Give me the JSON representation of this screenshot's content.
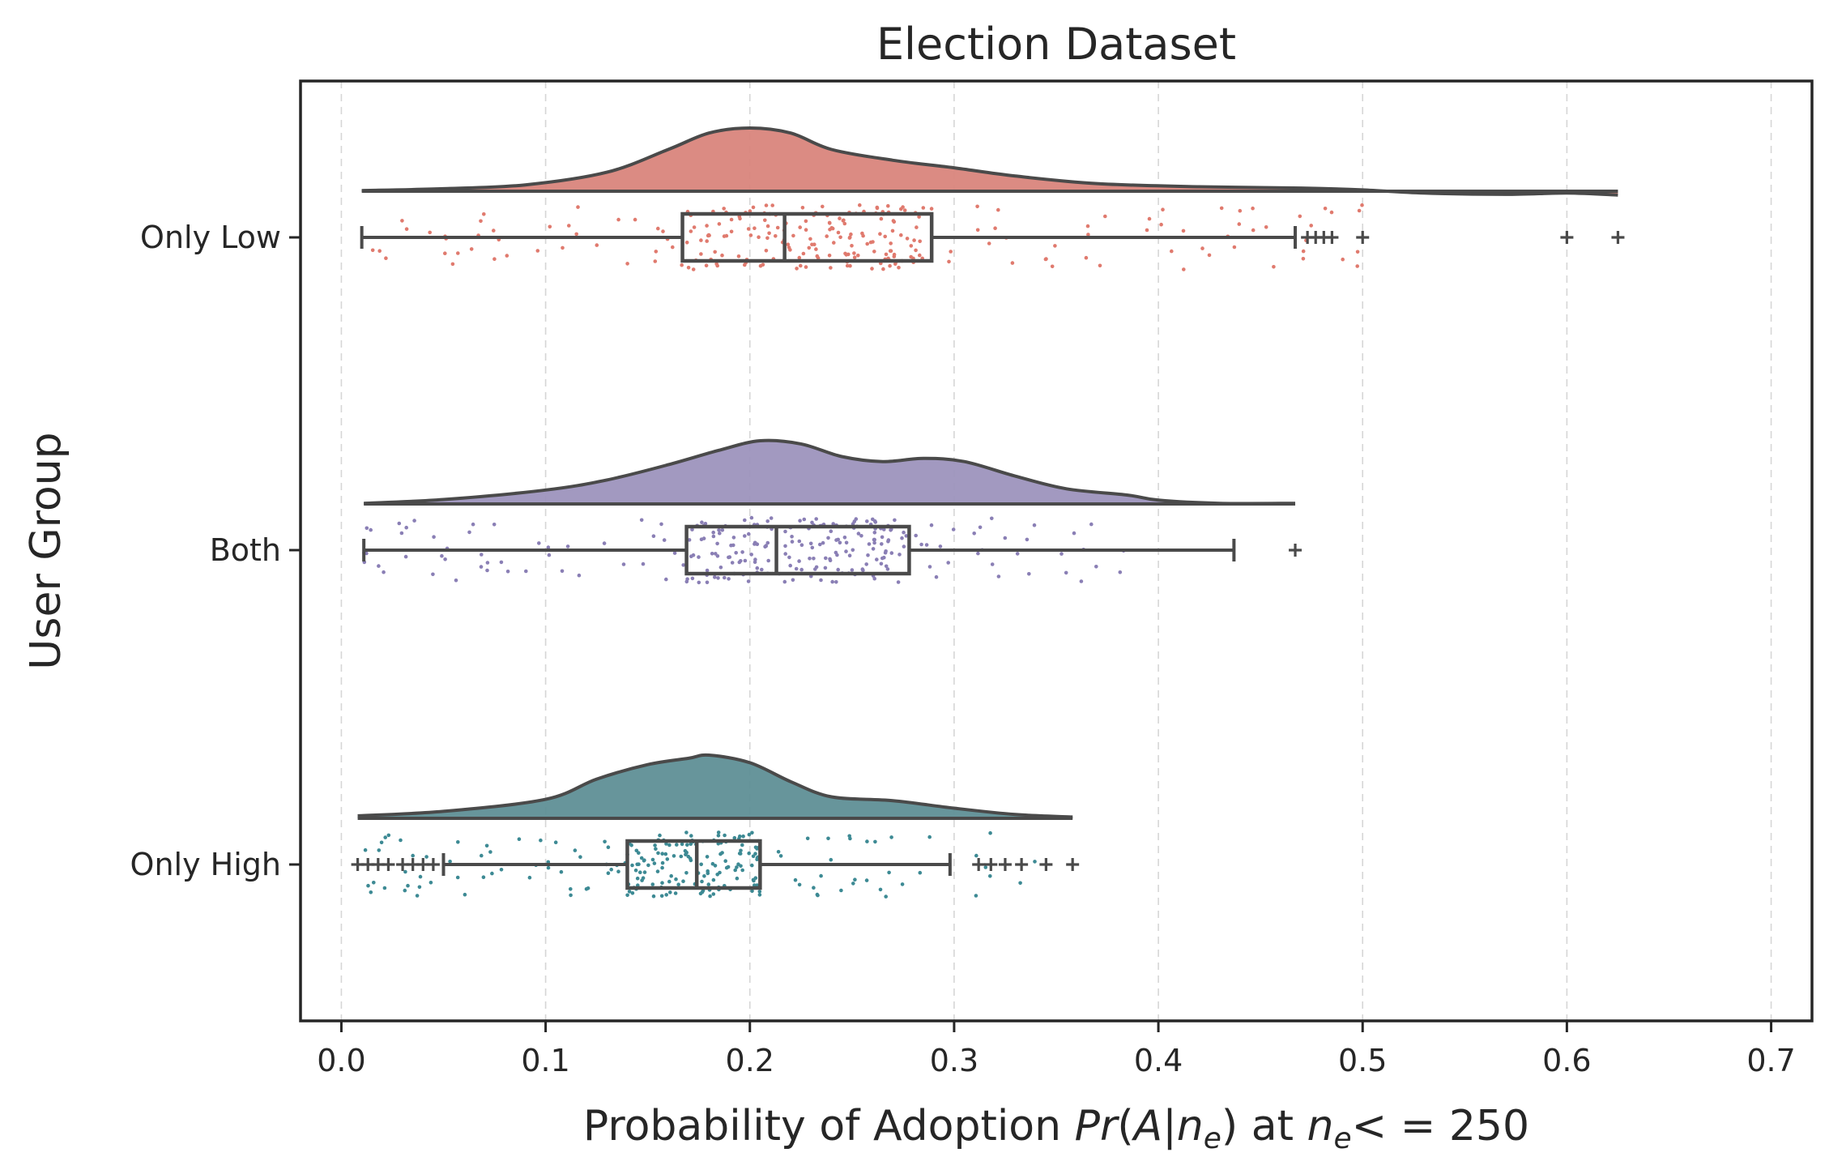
{
  "chart_data": {
    "type": "raincloud",
    "title": "Election Dataset",
    "xlabel": {
      "prefix": "Probability of Adoption ",
      "func": "Pr",
      "open": "(",
      "var": "A",
      "bar": "|",
      "n": "n",
      "sub": "e",
      "close": ")",
      "mid": " at ",
      "n2": "n",
      "sub2": "e",
      "rel": "< = 250"
    },
    "ylabel": "User Group",
    "xlim": [
      -0.02,
      0.72
    ],
    "xticks": [
      0.0,
      0.1,
      0.2,
      0.3,
      0.4,
      0.5,
      0.6,
      0.7
    ],
    "xtick_labels": [
      "0.0",
      "0.1",
      "0.2",
      "0.3",
      "0.4",
      "0.5",
      "0.6",
      "0.7"
    ],
    "grid": "vertical dashed",
    "categories": [
      "Only Low",
      "Both",
      "Only High"
    ],
    "series": [
      {
        "name": "Only Low",
        "color": "#d9857c",
        "point_color": "#e07a6e",
        "box": {
          "whisker_low": 0.01,
          "q1": 0.167,
          "median": 0.217,
          "q3": 0.289,
          "whisker_high": 0.467
        },
        "outliers": [
          0.473,
          0.477,
          0.481,
          0.485,
          0.5,
          0.6,
          0.625
        ],
        "density": [
          [
            0.01,
            0.01
          ],
          [
            0.05,
            0.04
          ],
          [
            0.09,
            0.1
          ],
          [
            0.13,
            0.3
          ],
          [
            0.16,
            0.66
          ],
          [
            0.18,
            0.92
          ],
          [
            0.2,
            1.0
          ],
          [
            0.22,
            0.92
          ],
          [
            0.24,
            0.66
          ],
          [
            0.27,
            0.49
          ],
          [
            0.3,
            0.37
          ],
          [
            0.33,
            0.24
          ],
          [
            0.37,
            0.12
          ],
          [
            0.42,
            0.07
          ],
          [
            0.47,
            0.05
          ],
          [
            0.5,
            0.02
          ],
          [
            0.53,
            -0.03
          ],
          [
            0.57,
            -0.05
          ],
          [
            0.6,
            -0.03
          ],
          [
            0.625,
            -0.06
          ]
        ],
        "points_range": [
          0.01,
          0.5
        ],
        "points_count": 260
      },
      {
        "name": "Both",
        "color": "#9d94bd",
        "point_color": "#8a7fb5",
        "box": {
          "whisker_low": 0.011,
          "q1": 0.169,
          "median": 0.213,
          "q3": 0.278,
          "whisker_high": 0.437
        },
        "outliers": [
          0.467
        ],
        "density": [
          [
            0.011,
            0.01
          ],
          [
            0.05,
            0.07
          ],
          [
            0.1,
            0.22
          ],
          [
            0.13,
            0.38
          ],
          [
            0.16,
            0.62
          ],
          [
            0.185,
            0.85
          ],
          [
            0.205,
            1.0
          ],
          [
            0.225,
            0.95
          ],
          [
            0.245,
            0.75
          ],
          [
            0.265,
            0.67
          ],
          [
            0.285,
            0.72
          ],
          [
            0.305,
            0.67
          ],
          [
            0.33,
            0.44
          ],
          [
            0.355,
            0.24
          ],
          [
            0.385,
            0.14
          ],
          [
            0.4,
            0.06
          ],
          [
            0.43,
            0.01
          ],
          [
            0.467,
            0.01
          ]
        ],
        "points_range": [
          0.01,
          0.39
        ],
        "points_count": 260
      },
      {
        "name": "Only High",
        "color": "#5f8f96",
        "point_color": "#3d8a94",
        "box": {
          "whisker_low": 0.05,
          "q1": 0.14,
          "median": 0.174,
          "q3": 0.205,
          "whisker_high": 0.298
        },
        "outliers": [
          0.008,
          0.013,
          0.018,
          0.023,
          0.03,
          0.035,
          0.04,
          0.045,
          0.312,
          0.318,
          0.325,
          0.333,
          0.345,
          0.358
        ],
        "density": [
          [
            0.008,
            0.04
          ],
          [
            0.05,
            0.11
          ],
          [
            0.1,
            0.3
          ],
          [
            0.125,
            0.62
          ],
          [
            0.15,
            0.85
          ],
          [
            0.17,
            0.95
          ],
          [
            0.18,
            1.0
          ],
          [
            0.2,
            0.88
          ],
          [
            0.22,
            0.58
          ],
          [
            0.24,
            0.34
          ],
          [
            0.27,
            0.28
          ],
          [
            0.3,
            0.16
          ],
          [
            0.33,
            0.06
          ],
          [
            0.358,
            0.02
          ]
        ],
        "points_range": [
          0.008,
          0.36
        ],
        "points_count": 230
      }
    ]
  }
}
